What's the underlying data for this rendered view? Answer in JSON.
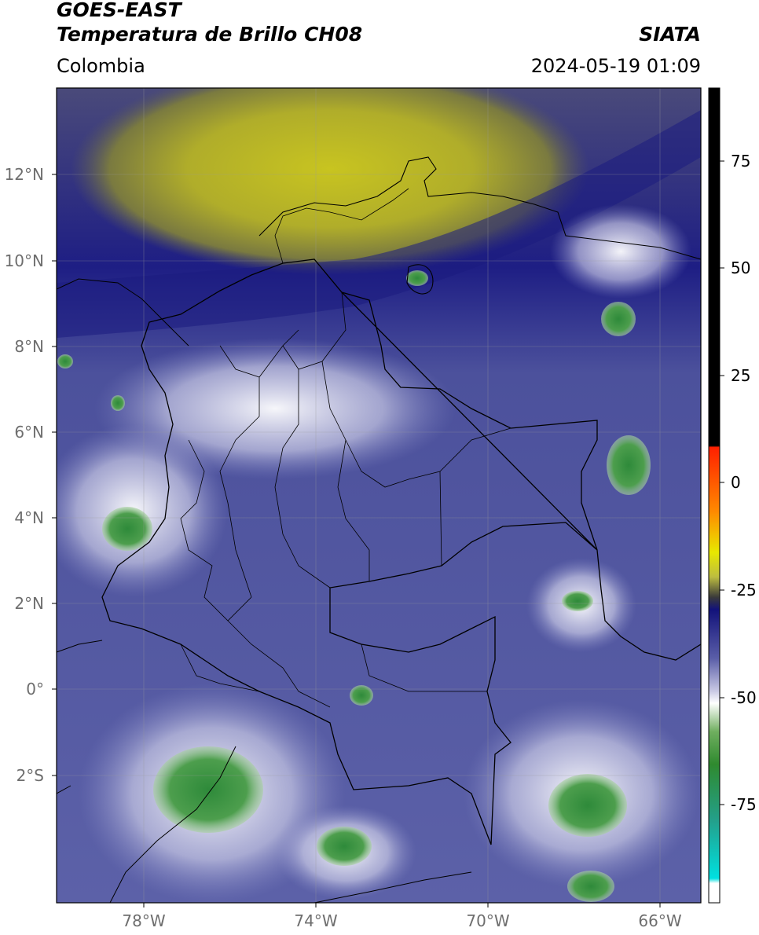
{
  "header": {
    "satellite": "GOES-EAST",
    "product": "Temperatura de Brillo CH08",
    "source": "SIATA",
    "region": "Colombia",
    "datetime": "2024-05-19 01:09"
  },
  "map": {
    "lat_ticks": [
      "12°N",
      "10°N",
      "8°N",
      "6°N",
      "4°N",
      "2°N",
      "0°",
      "2°S"
    ],
    "lon_ticks": [
      "78°W",
      "74°W",
      "70°W",
      "66°W"
    ],
    "extent_lon": [
      -80,
      -65
    ],
    "extent_lat": [
      -4.9,
      14.0
    ]
  },
  "colorbar": {
    "ticks": [
      "75",
      "50",
      "25",
      "0",
      "-25",
      "-50",
      "-75"
    ],
    "range": [
      -100,
      90
    ],
    "colors": {
      "top": "#000000",
      "warm": "#ff2000",
      "yellow": "#e8e800",
      "dark_blue": "#12127a",
      "light": "#ffffff",
      "green": "#2f8a2f",
      "cyan": "#00e0e0"
    }
  }
}
